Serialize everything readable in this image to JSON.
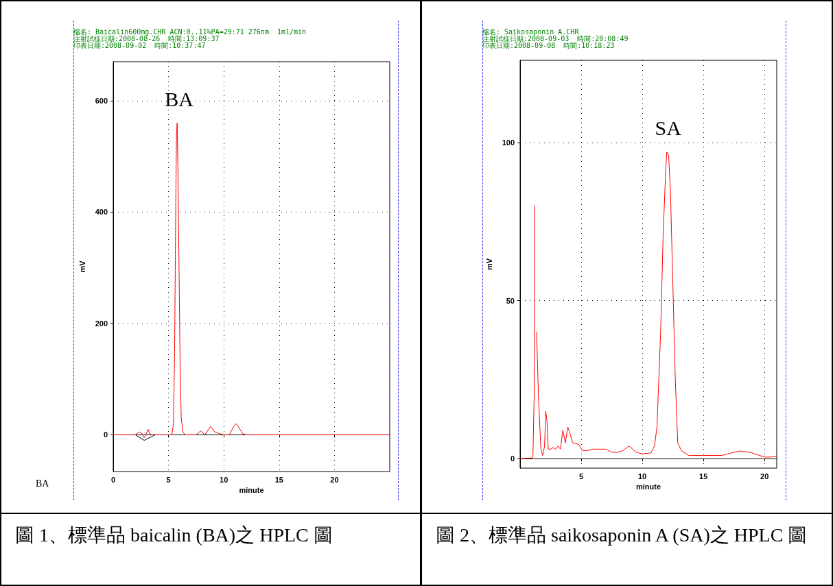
{
  "chart_data": [
    {
      "type": "line",
      "title": "圖 1、標準品 baicalin (BA)之 HPLC 圖",
      "xlabel": "minute",
      "ylabel": "mV",
      "xlim": [
        0,
        25
      ],
      "xticks": [
        0,
        5,
        10,
        15,
        20
      ],
      "ylim": [
        -66,
        670
      ],
      "yticks": [
        0,
        200,
        400,
        600
      ],
      "grid": true,
      "marker": "none",
      "line_style": "solid",
      "annotations": [
        "檔名: Baicalin600mg.CHR ACN:0..11%PA=29:71 276nm  1ml/min",
        "注射試樣日期:2008-08-26  時間:13:09:37",
        "印表日期:2008-09-02  時間:10:37:47",
        "BA",
        {
          "text": "BA",
          "x": 5.78,
          "y": 560
        }
      ],
      "series": [
        {
          "color": "#ff0000",
          "x": [
            0,
            2,
            2.2,
            2.4,
            2.6,
            2.8,
            3.0,
            3.15,
            3.3,
            3.5,
            5.3,
            5.45,
            5.55,
            5.65,
            5.72,
            5.78,
            5.85,
            5.95,
            6.05,
            6.15,
            6.3,
            6.5,
            7.5,
            7.9,
            8.3,
            8.8,
            9.2,
            9.6,
            10.0,
            10.5,
            10.9,
            11.1,
            11.3,
            11.7,
            12,
            25
          ],
          "values": [
            0,
            0,
            3,
            5,
            2,
            -5,
            2,
            10,
            2,
            0,
            0,
            20,
            150,
            400,
            540,
            560,
            480,
            300,
            120,
            30,
            5,
            0,
            0,
            7,
            0,
            15,
            5,
            2,
            0,
            0,
            15,
            20,
            15,
            2,
            0,
            0
          ]
        },
        {
          "color": "#000000",
          "x": [
            2,
            2.8,
            3.8
          ],
          "values": [
            0,
            -10,
            0
          ]
        }
      ]
    },
    {
      "type": "line",
      "title": "圖 2、標準品 saikosaponin A (SA)之 HPLC 圖",
      "xlabel": "minute",
      "ylabel": "mV",
      "xlim": [
        0,
        21
      ],
      "xticks": [
        5,
        10,
        15,
        20
      ],
      "ylim": [
        -3,
        126
      ],
      "yticks": [
        0,
        50,
        100
      ],
      "grid": true,
      "marker": "none",
      "line_style": "solid",
      "annotations": [
        "檔名: Saikosaponin A.CHR",
        "注射試樣日期:2008-09-03  時間:20:08:49",
        "印表日期:2008-09-08  時間:10:18:23",
        {
          "text": "SA",
          "x": 12.05,
          "y": 97
        }
      ],
      "series": [
        {
          "color": "#ff0000",
          "x": [
            0,
            1.0,
            1.05,
            1.15,
            1.2,
            1.23,
            1.3,
            1.35,
            1.5,
            1.7,
            1.85,
            2.0,
            2.1,
            2.2,
            2.3,
            2.5,
            2.7,
            2.9,
            3.1,
            3.3,
            3.5,
            3.6,
            3.7,
            3.9,
            4.0,
            4.3,
            4.8,
            5.1,
            5.5,
            5.9,
            6.3,
            7.0,
            7.5,
            8.0,
            8.4,
            8.9,
            9.2,
            9.5,
            10.0,
            10.7,
            11.0,
            11.2,
            11.5,
            11.7,
            11.9,
            12.0,
            12.15,
            12.3,
            12.5,
            12.7,
            12.9,
            13.2,
            13.8,
            15,
            16,
            16.5,
            17.5,
            18,
            18.8,
            20,
            20.5,
            21
          ],
          "values": [
            0,
            0.2,
            1,
            20,
            80,
            null,
            null,
            40,
            20,
            3,
            1,
            4,
            15,
            12,
            3,
            3,
            3.5,
            3,
            4,
            3,
            9,
            7,
            5,
            10,
            9,
            5,
            4.5,
            2.5,
            2.5,
            3,
            3,
            3,
            2,
            2,
            2.5,
            4,
            3,
            2,
            1.5,
            1.8,
            4,
            10,
            40,
            70,
            90,
            97,
            96,
            85,
            55,
            25,
            5,
            2.5,
            1,
            1,
            1,
            1,
            2,
            2.4,
            2,
            0.5,
            0.5,
            0.8
          ]
        }
      ]
    }
  ]
}
